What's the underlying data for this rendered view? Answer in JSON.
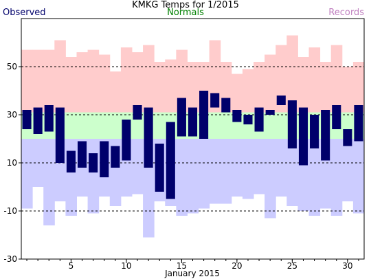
{
  "chart_data": {
    "type": "bar",
    "title": "KMKG Temps for 1/2015",
    "xlabel": "January 2015",
    "legend": {
      "observed": "Observed",
      "normals": "Normals",
      "records": "Records"
    },
    "colors": {
      "observed": "#00006b",
      "normals": "#ccffcc",
      "record_high_band": "#ffcccc",
      "record_low_band": "#ccccff",
      "observed_legend": "#00006b",
      "normals_legend": "#008000",
      "records_legend": "#c080c0"
    },
    "ylim": [
      -30,
      70
    ],
    "yticks": [
      -30,
      -10,
      10,
      30,
      50
    ],
    "ygrid_dashed": [
      -10,
      10,
      30,
      50
    ],
    "xticks": [
      "5",
      "10",
      "15",
      "20",
      "25",
      "30"
    ],
    "xtick_days": [
      5,
      10,
      15,
      20,
      25,
      30
    ],
    "days": [
      1,
      2,
      3,
      4,
      5,
      6,
      7,
      8,
      9,
      10,
      11,
      12,
      13,
      14,
      15,
      16,
      17,
      18,
      19,
      20,
      21,
      22,
      23,
      24,
      25,
      26,
      27,
      28,
      29,
      30,
      31
    ],
    "observed_high": [
      32,
      33,
      34,
      33,
      15,
      19,
      14,
      19,
      17,
      28,
      34,
      33,
      18,
      27,
      37,
      33,
      40,
      39,
      37,
      32,
      30,
      33,
      32,
      38,
      36,
      33,
      30,
      32,
      34,
      24,
      34
    ],
    "observed_low": [
      24,
      22,
      23,
      10,
      6,
      8,
      6,
      4,
      8,
      11,
      28,
      8,
      -2,
      -5,
      21,
      21,
      20,
      33,
      31,
      27,
      26,
      23,
      30,
      34,
      16,
      9,
      16,
      11,
      24,
      17,
      19
    ],
    "normal_high": [
      31,
      31,
      31,
      31,
      31,
      31,
      31,
      31,
      31,
      31,
      31,
      31,
      31,
      31,
      31,
      31,
      31,
      31,
      31,
      31,
      31,
      31,
      31,
      31,
      31,
      31,
      31,
      31,
      31,
      31,
      31
    ],
    "normal_low": [
      20,
      20,
      20,
      20,
      20,
      20,
      20,
      20,
      20,
      20,
      20,
      20,
      20,
      20,
      20,
      20,
      20,
      20,
      20,
      20,
      20,
      20,
      20,
      20,
      20,
      20,
      20,
      20,
      20,
      20,
      20
    ],
    "record_high": [
      57,
      57,
      57,
      61,
      54,
      56,
      57,
      55,
      48,
      58,
      56,
      59,
      52,
      53,
      57,
      52,
      52,
      61,
      52,
      47,
      49,
      52,
      55,
      59,
      63,
      54,
      58,
      52,
      59,
      50,
      52
    ],
    "record_low": [
      -9,
      0,
      -16,
      -6,
      -12,
      -4,
      -11,
      -4,
      -8,
      -4,
      -3,
      -21,
      -6,
      -8,
      -12,
      -11,
      -9,
      -7,
      -7,
      -4,
      -5,
      -3,
      -13,
      -4,
      -8,
      -10,
      -12,
      -9,
      -12,
      -6,
      -11
    ]
  }
}
